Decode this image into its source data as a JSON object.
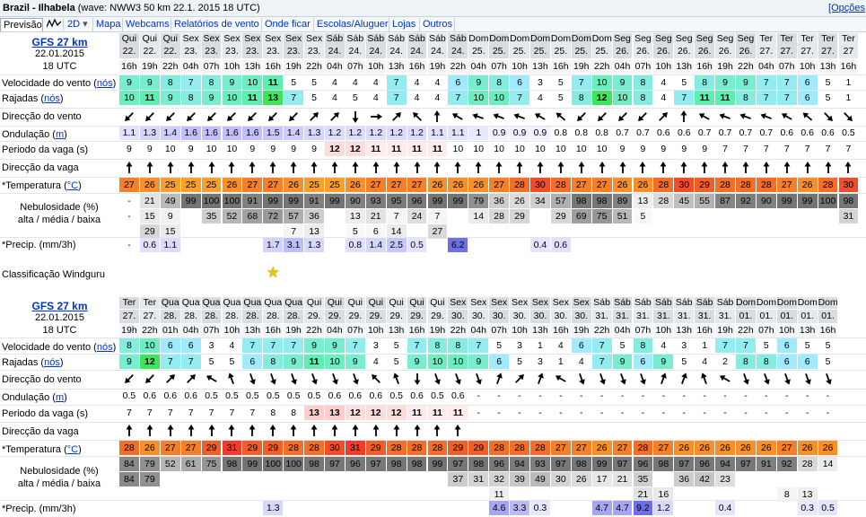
{
  "header": {
    "location": "Brazil - Ilhabela",
    "wave_info": "(wave: NWW3 50 km 22.1. 2015 18 UTC)",
    "options": "[Opções"
  },
  "tabs": [
    "Previsão",
    "2D",
    "Mapa",
    "Webcams",
    "Relatórios de vento",
    "Onde ficar",
    "Escolas/Aluguer",
    "Lojas",
    "Outros"
  ],
  "row_labels": {
    "wind_speed": "Velocidade do vento",
    "knots": "nós",
    "gusts": "Rajadas",
    "wind_dir": "Direcção do vento",
    "wave": "Ondulação",
    "meters": "m",
    "period": "Periodo da vaga (s)",
    "wave_dir": "Direcção da vaga",
    "temp": "*Temperatura",
    "celsius": "°C",
    "cloud1": "Nebulosidade (%)",
    "cloud2": "alta / média / baixa",
    "precip": "*Precip. (mm/3h)",
    "rating": "Classificação Windguru"
  },
  "blocks": [
    {
      "model": "GFS 27 km",
      "date": "22.01.2015",
      "utc": "18 UTC",
      "days": [
        "Qui",
        "Qui",
        "Qui",
        "Sex",
        "Sex",
        "Sex",
        "Sex",
        "Sex",
        "Sex",
        "Sex",
        "Sáb",
        "Sáb",
        "Sáb",
        "Sáb",
        "Sáb",
        "Sáb",
        "Sáb",
        "Dom",
        "Dom",
        "Dom",
        "Dom",
        "Dom",
        "Dom",
        "Dom",
        "Seg",
        "Seg",
        "Seg",
        "Seg",
        "Seg",
        "Seg",
        "Seg",
        "Ter",
        "Ter",
        "Ter",
        "Ter",
        "Ter"
      ],
      "dates": [
        "22.",
        "22.",
        "22.",
        "23.",
        "23.",
        "23.",
        "23.",
        "23.",
        "23.",
        "23.",
        "24.",
        "24.",
        "24.",
        "24.",
        "24.",
        "24.",
        "24.",
        "25.",
        "25.",
        "25.",
        "25.",
        "25.",
        "25.",
        "25.",
        "26.",
        "26.",
        "26.",
        "26.",
        "26.",
        "26.",
        "26.",
        "27.",
        "27.",
        "27.",
        "27.",
        "27"
      ],
      "hours": [
        "16h",
        "19h",
        "22h",
        "04h",
        "07h",
        "10h",
        "13h",
        "16h",
        "19h",
        "22h",
        "04h",
        "07h",
        "10h",
        "13h",
        "16h",
        "19h",
        "22h",
        "04h",
        "07h",
        "10h",
        "13h",
        "16h",
        "19h",
        "22h",
        "04h",
        "07h",
        "10h",
        "13h",
        "16h",
        "19h",
        "22h",
        "04h",
        "07h",
        "10h",
        "13h",
        "16h"
      ],
      "wind": [
        "9",
        "9",
        "8",
        "7",
        "8",
        "9",
        "10",
        "11",
        "5",
        "5",
        "4",
        "4",
        "4",
        "7",
        "4",
        "4",
        "6",
        "9",
        "8",
        "6",
        "3",
        "5",
        "7",
        "10",
        "9",
        "8",
        "4",
        "5",
        "8",
        "9",
        "9",
        "7",
        "7",
        "6",
        "5",
        "1"
      ],
      "gusts": [
        "10",
        "11",
        "9",
        "8",
        "9",
        "10",
        "11",
        "13",
        "7",
        "5",
        "4",
        "5",
        "4",
        "7",
        "4",
        "4",
        "7",
        "10",
        "10",
        "7",
        "4",
        "5",
        "8",
        "12",
        "10",
        "8",
        "4",
        "7",
        "11",
        "11",
        "8",
        "7",
        "7",
        "6",
        "5",
        "1"
      ],
      "wind_dir": [
        225,
        225,
        225,
        225,
        225,
        225,
        225,
        225,
        225,
        45,
        45,
        180,
        90,
        45,
        315,
        0,
        300,
        290,
        290,
        290,
        300,
        310,
        225,
        225,
        225,
        225,
        45,
        0,
        300,
        290,
        290,
        290,
        300,
        310,
        135,
        135
      ],
      "wave": [
        "1.1",
        "1.3",
        "1.4",
        "1.6",
        "1.6",
        "1.6",
        "1.6",
        "1.5",
        "1.4",
        "1.3",
        "1.2",
        "1.2",
        "1.2",
        "1.2",
        "1.2",
        "1.1",
        "1.1",
        "1",
        "0.9",
        "0.9",
        "0.9",
        "0.8",
        "0.8",
        "0.8",
        "0.7",
        "0.7",
        "0.6",
        "0.6",
        "0.7",
        "0.7",
        "0.7",
        "0.7",
        "0.6",
        "0.6",
        "0.6",
        "0.5"
      ],
      "period": [
        "9",
        "9",
        "10",
        "9",
        "10",
        "10",
        "9",
        "9",
        "9",
        "9",
        "12",
        "12",
        "11",
        "11",
        "11",
        "11",
        "10",
        "10",
        "10",
        "10",
        "10",
        "10",
        "10",
        "10",
        "9",
        "9",
        "9",
        "9",
        "9",
        "7",
        "7",
        "7",
        "7",
        "7",
        "7",
        "7"
      ],
      "wave_dir": [
        0,
        0,
        0,
        0,
        0,
        0,
        0,
        0,
        0,
        0,
        0,
        0,
        0,
        0,
        0,
        0,
        0,
        0,
        0,
        0,
        0,
        0,
        0,
        0,
        0,
        0,
        0,
        0,
        0,
        0,
        0,
        0,
        0,
        0,
        0,
        0
      ],
      "temp": [
        "27",
        "26",
        "25",
        "25",
        "25",
        "26",
        "27",
        "27",
        "26",
        "25",
        "25",
        "26",
        "27",
        "27",
        "27",
        "26",
        "26",
        "26",
        "27",
        "28",
        "30",
        "28",
        "27",
        "27",
        "26",
        "26",
        "28",
        "30",
        "29",
        "28",
        "28",
        "28",
        "27",
        "26",
        "28",
        "30"
      ],
      "cloud_high": [
        "-",
        "21",
        "49",
        "99",
        "100",
        "100",
        "91",
        "99",
        "99",
        "91",
        "99",
        "90",
        "93",
        "95",
        "96",
        "99",
        "99",
        "79",
        "36",
        "26",
        "34",
        "57",
        "98",
        "98",
        "89",
        "13",
        "28",
        "45",
        "55",
        "87",
        "92",
        "90",
        "99",
        "99",
        "100",
        "98"
      ],
      "cloud_mid": [
        "-",
        "15",
        "9",
        "",
        "35",
        "52",
        "68",
        "72",
        "57",
        "36",
        "",
        "13",
        "21",
        "7",
        "24",
        "7",
        "",
        "14",
        "28",
        "29",
        "",
        "29",
        "69",
        "75",
        "51",
        "5",
        "",
        "",
        "",
        "",
        "",
        "",
        "",
        "",
        "",
        "31"
      ],
      "cloud_low": [
        "",
        "29",
        "15",
        "",
        "",
        "",
        "",
        "",
        "7",
        "13",
        "",
        "5",
        "6",
        "14",
        "",
        "27",
        "",
        "",
        "",
        "",
        "",
        "",
        "",
        "",
        "",
        "",
        "",
        "",
        "",
        "",
        "",
        "",
        "",
        "",
        "",
        ""
      ],
      "precip": [
        "-",
        "0.6",
        "1.1",
        "",
        "",
        "",
        "",
        "1.7",
        "3.1",
        "1.3",
        "",
        "0.8",
        "1.4",
        "2.5",
        "0.5",
        "",
        "6.2",
        "",
        "",
        "",
        "0.4",
        "0.6",
        "",
        "",
        "",
        "",
        "",
        "",
        "",
        "",
        "",
        "",
        "",
        "",
        "",
        ""
      ],
      "rating_col": 7
    },
    {
      "model": "GFS 27 km",
      "date": "22.01.2015",
      "utc": "18 UTC",
      "days": [
        "Ter",
        "Ter",
        "Qua",
        "Qua",
        "Qua",
        "Qua",
        "Qua",
        "Qua",
        "Qua",
        "Qui",
        "Qui",
        "Qui",
        "Qui",
        "Qui",
        "Qui",
        "Qui",
        "Sex",
        "Sex",
        "Sex",
        "Sex",
        "Sex",
        "Sex",
        "Sex",
        "Sáb",
        "Sáb",
        "Sáb",
        "Sáb",
        "Sáb",
        "Sáb",
        "Sáb",
        "Dom",
        "Dom",
        "Dom",
        "Dom",
        "Dom"
      ],
      "dates": [
        "27.",
        "27.",
        "28.",
        "28.",
        "28.",
        "28.",
        "28.",
        "28.",
        "28.",
        "29.",
        "29.",
        "29.",
        "29.",
        "29.",
        "29.",
        "29.",
        "30.",
        "30.",
        "30.",
        "30.",
        "30.",
        "30.",
        "30.",
        "31.",
        "31.",
        "31.",
        "31.",
        "31.",
        "31.",
        "31.",
        "01.",
        "01.",
        "01.",
        "01.",
        "01."
      ],
      "hours": [
        "19h",
        "22h",
        "01h",
        "04h",
        "07h",
        "10h",
        "13h",
        "16h",
        "19h",
        "22h",
        "04h",
        "07h",
        "10h",
        "13h",
        "16h",
        "19h",
        "22h",
        "04h",
        "07h",
        "10h",
        "13h",
        "16h",
        "19h",
        "22h",
        "04h",
        "07h",
        "10h",
        "13h",
        "16h",
        "19h",
        "22h",
        "07h",
        "10h",
        "13h",
        "16h"
      ],
      "wind": [
        "8",
        "10",
        "6",
        "6",
        "3",
        "4",
        "7",
        "7",
        "7",
        "9",
        "9",
        "7",
        "3",
        "5",
        "7",
        "8",
        "8",
        "7",
        "5",
        "3",
        "1",
        "4",
        "6",
        "7",
        "5",
        "8",
        "4",
        "3",
        "1",
        "7",
        "7",
        "5",
        "6",
        "5",
        "5"
      ],
      "gusts": [
        "9",
        "12",
        "7",
        "7",
        "5",
        "5",
        "6",
        "8",
        "9",
        "11",
        "10",
        "9",
        "4",
        "5",
        "9",
        "10",
        "10",
        "9",
        "6",
        "5",
        "3",
        "1",
        "4",
        "7",
        "9",
        "6",
        "9",
        "5",
        "4",
        "2",
        "8",
        "8",
        "6",
        "6",
        "5"
      ],
      "wind_dir": [
        225,
        225,
        45,
        45,
        300,
        340,
        160,
        160,
        160,
        160,
        160,
        160,
        315,
        340,
        180,
        160,
        160,
        160,
        20,
        45,
        20,
        300,
        160,
        160,
        160,
        160,
        20,
        20,
        340,
        300,
        160,
        160,
        160,
        160,
        160
      ],
      "wave": [
        "0.5",
        "0.6",
        "0.6",
        "0.6",
        "0.5",
        "0.5",
        "0.5",
        "0.5",
        "0.5",
        "0.5",
        "0.6",
        "0.6",
        "0.6",
        "0.5",
        "0.6",
        "0.5",
        "0.6",
        "-",
        "-",
        "-",
        "-",
        "-",
        "-",
        "-",
        "-",
        "-",
        "-",
        "-",
        "-",
        "-",
        "-",
        "-",
        "-",
        "-",
        "-"
      ],
      "period": [
        "7",
        "7",
        "7",
        "7",
        "7",
        "7",
        "7",
        "8",
        "8",
        "13",
        "13",
        "12",
        "12",
        "12",
        "11",
        "11",
        "11",
        "-",
        "-",
        "-",
        "-",
        "-",
        "-",
        "-",
        "-",
        "-",
        "-",
        "-",
        "-",
        "-",
        "-",
        "-",
        "-",
        "-",
        "-"
      ],
      "wave_dir": [
        0,
        0,
        0,
        0,
        0,
        0,
        0,
        0,
        0,
        0,
        0,
        0,
        0,
        0,
        0,
        0,
        0,
        null,
        null,
        null,
        null,
        null,
        null,
        null,
        null,
        null,
        null,
        null,
        null,
        null,
        null,
        null,
        null,
        null,
        null
      ],
      "temp": [
        "28",
        "26",
        "27",
        "27",
        "29",
        "31",
        "29",
        "29",
        "28",
        "28",
        "30",
        "31",
        "29",
        "28",
        "28",
        "28",
        "29",
        "29",
        "28",
        "28",
        "28",
        "27",
        "27",
        "26",
        "27",
        "28",
        "27",
        "26",
        "26",
        "26",
        "26",
        "26",
        "27",
        "26",
        "26"
      ],
      "cloud_high": [
        "84",
        "79",
        "52",
        "61",
        "75",
        "98",
        "99",
        "100",
        "100",
        "98",
        "97",
        "96",
        "97",
        "98",
        "98",
        "99",
        "97",
        "98",
        "96",
        "94",
        "93",
        "97",
        "98",
        "99",
        "97",
        "96",
        "98",
        "97",
        "96",
        "94",
        "97",
        "91",
        "92",
        "28",
        "14"
      ],
      "cloud_mid": [
        "84",
        "79",
        "",
        "",
        "",
        "",
        "",
        "",
        "",
        "",
        "",
        "",
        "",
        "",
        "",
        "",
        "37",
        "31",
        "32",
        "39",
        "49",
        "30",
        "26",
        "17",
        "21",
        "35",
        "",
        "36",
        "42",
        "23",
        "",
        "",
        "",
        "",
        ""
      ],
      "cloud_low": [
        "",
        "",
        "",
        "",
        "",
        "",
        "",
        "",
        "",
        "",
        "",
        "",
        "",
        "",
        "",
        "",
        "",
        "",
        "11",
        "",
        "",
        "",
        "",
        "",
        "",
        "21",
        "16",
        "",
        "",
        "",
        "",
        "",
        "8",
        "13",
        ""
      ],
      "precip": [
        "",
        "",
        "",
        "",
        "",
        "",
        "",
        "1.3",
        "",
        "",
        "",
        "",
        "",
        "",
        "",
        "",
        "",
        "",
        "4.6",
        "3.3",
        "0.3",
        "",
        "",
        "4.7",
        "4.7",
        "9.2",
        "1.2",
        "",
        "",
        "0.4",
        "",
        "",
        "",
        "0.3",
        "0.5"
      ],
      "rating_col": -1
    }
  ],
  "colors": {
    "accent_link": "#0033cc",
    "rating_star": "#ffdd00"
  }
}
